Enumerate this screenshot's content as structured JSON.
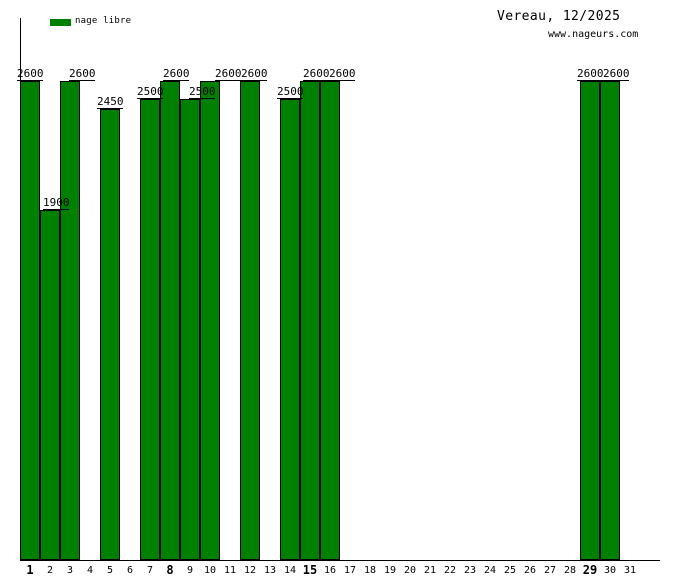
{
  "page": {
    "background": "#ffffff"
  },
  "chart_data": {
    "type": "bar",
    "title": "Vereau, 12/2025",
    "watermark": "www.nageurs.com",
    "legend": [
      {
        "label": "nage libre",
        "color": "#008000"
      }
    ],
    "legend_position": "top-left",
    "grid": false,
    "y_axis": {
      "tick_labels_shown": false,
      "ylim": [
        0,
        2940
      ]
    },
    "x_axis": {
      "categories": [
        "1",
        "2",
        "3",
        "4",
        "5",
        "6",
        "7",
        "8",
        "9",
        "10",
        "11",
        "12",
        "13",
        "14",
        "15",
        "16",
        "17",
        "18",
        "19",
        "20",
        "21",
        "22",
        "23",
        "24",
        "25",
        "26",
        "27",
        "28",
        "29",
        "30",
        "31"
      ],
      "bold_labels": [
        "1",
        "8",
        "15",
        "29"
      ]
    },
    "series": [
      {
        "name": "nage libre",
        "color": "#008000",
        "values": [
          2600,
          1900,
          2600,
          null,
          2450,
          null,
          2500,
          2600,
          2500,
          2600,
          null,
          2600,
          null,
          2500,
          2600,
          2600,
          null,
          null,
          null,
          null,
          null,
          null,
          null,
          null,
          null,
          null,
          null,
          null,
          2600,
          2600,
          null
        ]
      }
    ],
    "value_labels_shown": true,
    "value_label_style": "underlined, above bar"
  }
}
